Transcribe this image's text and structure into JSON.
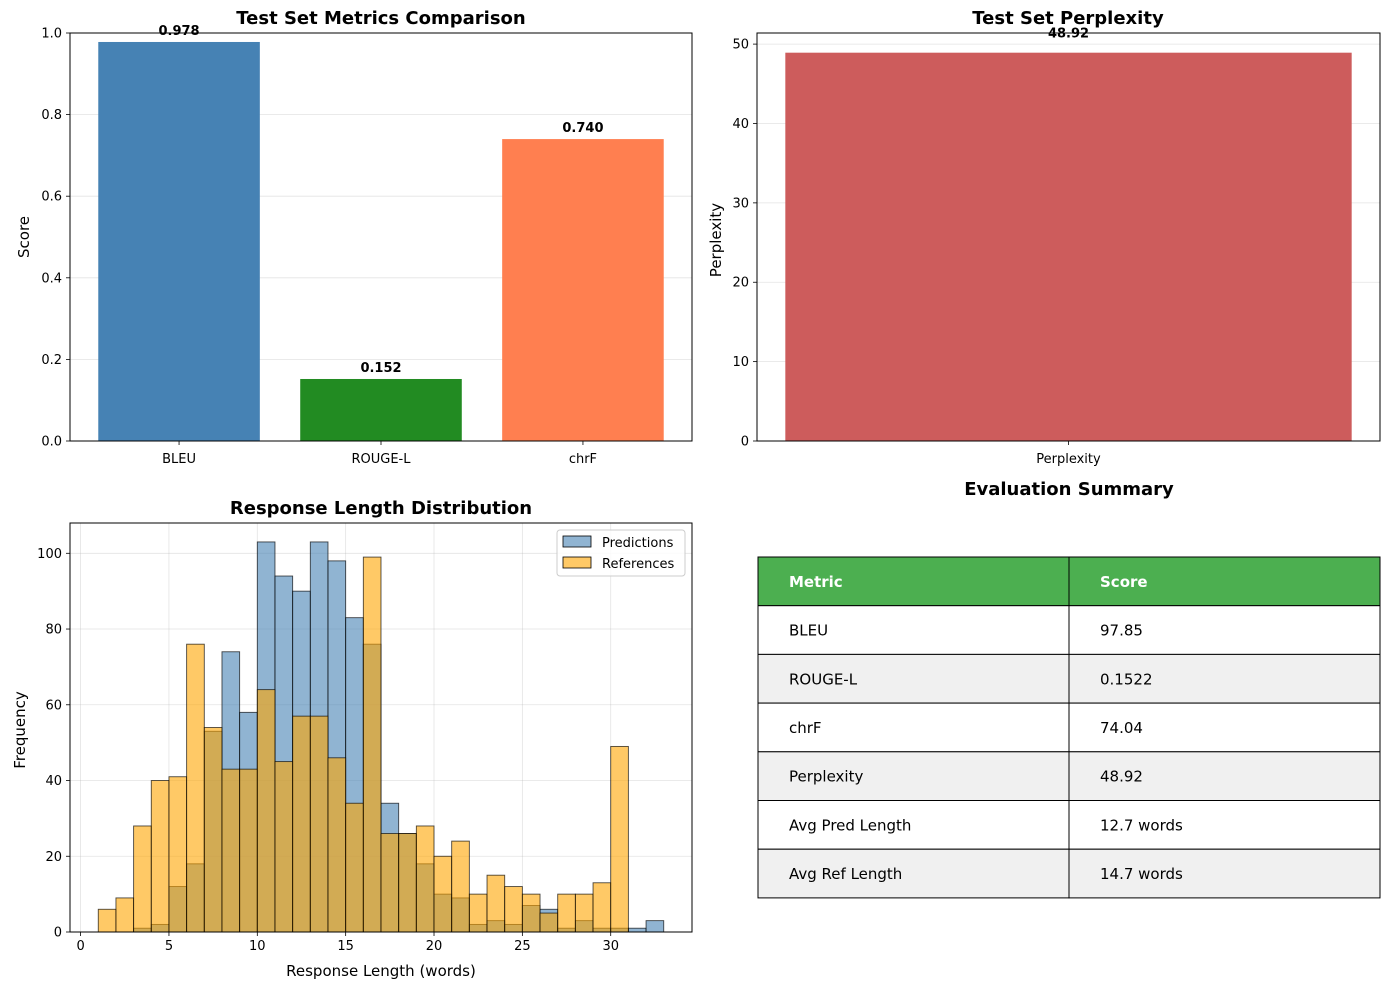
{
  "chart_data": [
    {
      "type": "bar",
      "title": "Test Set Metrics Comparison",
      "xlabel": "",
      "ylabel": "Score",
      "categories": [
        "BLEU",
        "ROUGE-L",
        "chrF"
      ],
      "values": [
        0.978,
        0.152,
        0.74
      ],
      "value_labels": [
        "0.978",
        "0.152",
        "0.740"
      ],
      "colors": [
        "#4682b4",
        "#228b22",
        "#ff7f50"
      ],
      "ylim": [
        0,
        1.0
      ],
      "yticks": [
        0.0,
        0.2,
        0.4,
        0.6,
        0.8,
        1.0
      ],
      "ytick_labels": [
        "0.0",
        "0.2",
        "0.4",
        "0.6",
        "0.8",
        "1.0"
      ],
      "grid": "y"
    },
    {
      "type": "bar",
      "title": "Test Set Perplexity",
      "xlabel": "",
      "ylabel": "Perplexity",
      "categories": [
        "Perplexity"
      ],
      "values": [
        48.92
      ],
      "value_labels": [
        "48.92"
      ],
      "colors": [
        "#cd5c5c"
      ],
      "ylim": [
        0,
        51.4
      ],
      "yticks": [
        0,
        10,
        20,
        30,
        40,
        50
      ],
      "ytick_labels": [
        "0",
        "10",
        "20",
        "30",
        "40",
        "50"
      ],
      "grid": "y"
    },
    {
      "type": "histogram",
      "title": "Response Length Distribution",
      "xlabel": "Response Length (words)",
      "ylabel": "Frequency",
      "xlim": [
        -0.6,
        34.6
      ],
      "ylim": [
        0,
        108
      ],
      "xticks": [
        0,
        5,
        10,
        15,
        20,
        25,
        30
      ],
      "xtick_labels": [
        "0",
        "5",
        "10",
        "15",
        "20",
        "25",
        "30"
      ],
      "yticks": [
        0,
        20,
        40,
        60,
        80,
        100
      ],
      "ytick_labels": [
        "0",
        "20",
        "40",
        "60",
        "80",
        "100"
      ],
      "grid": "both",
      "legend_position": "top-right",
      "series": [
        {
          "name": "Predictions",
          "color": "#4682b4",
          "alpha": 0.6,
          "bin_start": 3,
          "bin_width": 1,
          "counts": [
            1,
            2,
            12,
            18,
            53,
            74,
            58,
            103,
            94,
            90,
            103,
            98,
            83,
            76,
            34,
            26,
            18,
            10,
            9,
            2,
            3,
            2,
            7,
            6,
            1,
            3,
            1,
            1,
            1,
            3
          ]
        },
        {
          "name": "References",
          "color": "#ffa500",
          "alpha": 0.6,
          "bin_start": 1,
          "bin_width": 1.0,
          "counts": [
            6,
            9,
            28,
            40,
            41,
            76,
            54,
            43,
            43,
            64,
            45,
            57,
            57,
            46,
            34,
            99,
            26,
            26,
            28,
            20,
            24,
            10,
            15,
            12,
            10,
            5,
            10,
            10,
            13,
            49
          ]
        }
      ]
    }
  ],
  "summary": {
    "title": "Evaluation Summary",
    "header": [
      "Metric",
      "Score"
    ],
    "header_color": "#4caf50",
    "stripe_color": "#f0f0f0",
    "rows": [
      [
        "BLEU",
        "97.85"
      ],
      [
        "ROUGE-L",
        "0.1522"
      ],
      [
        "chrF",
        "74.04"
      ],
      [
        "Perplexity",
        "48.92"
      ],
      [
        "Avg Pred Length",
        "12.7 words"
      ],
      [
        "Avg Ref Length",
        "14.7 words"
      ]
    ]
  }
}
